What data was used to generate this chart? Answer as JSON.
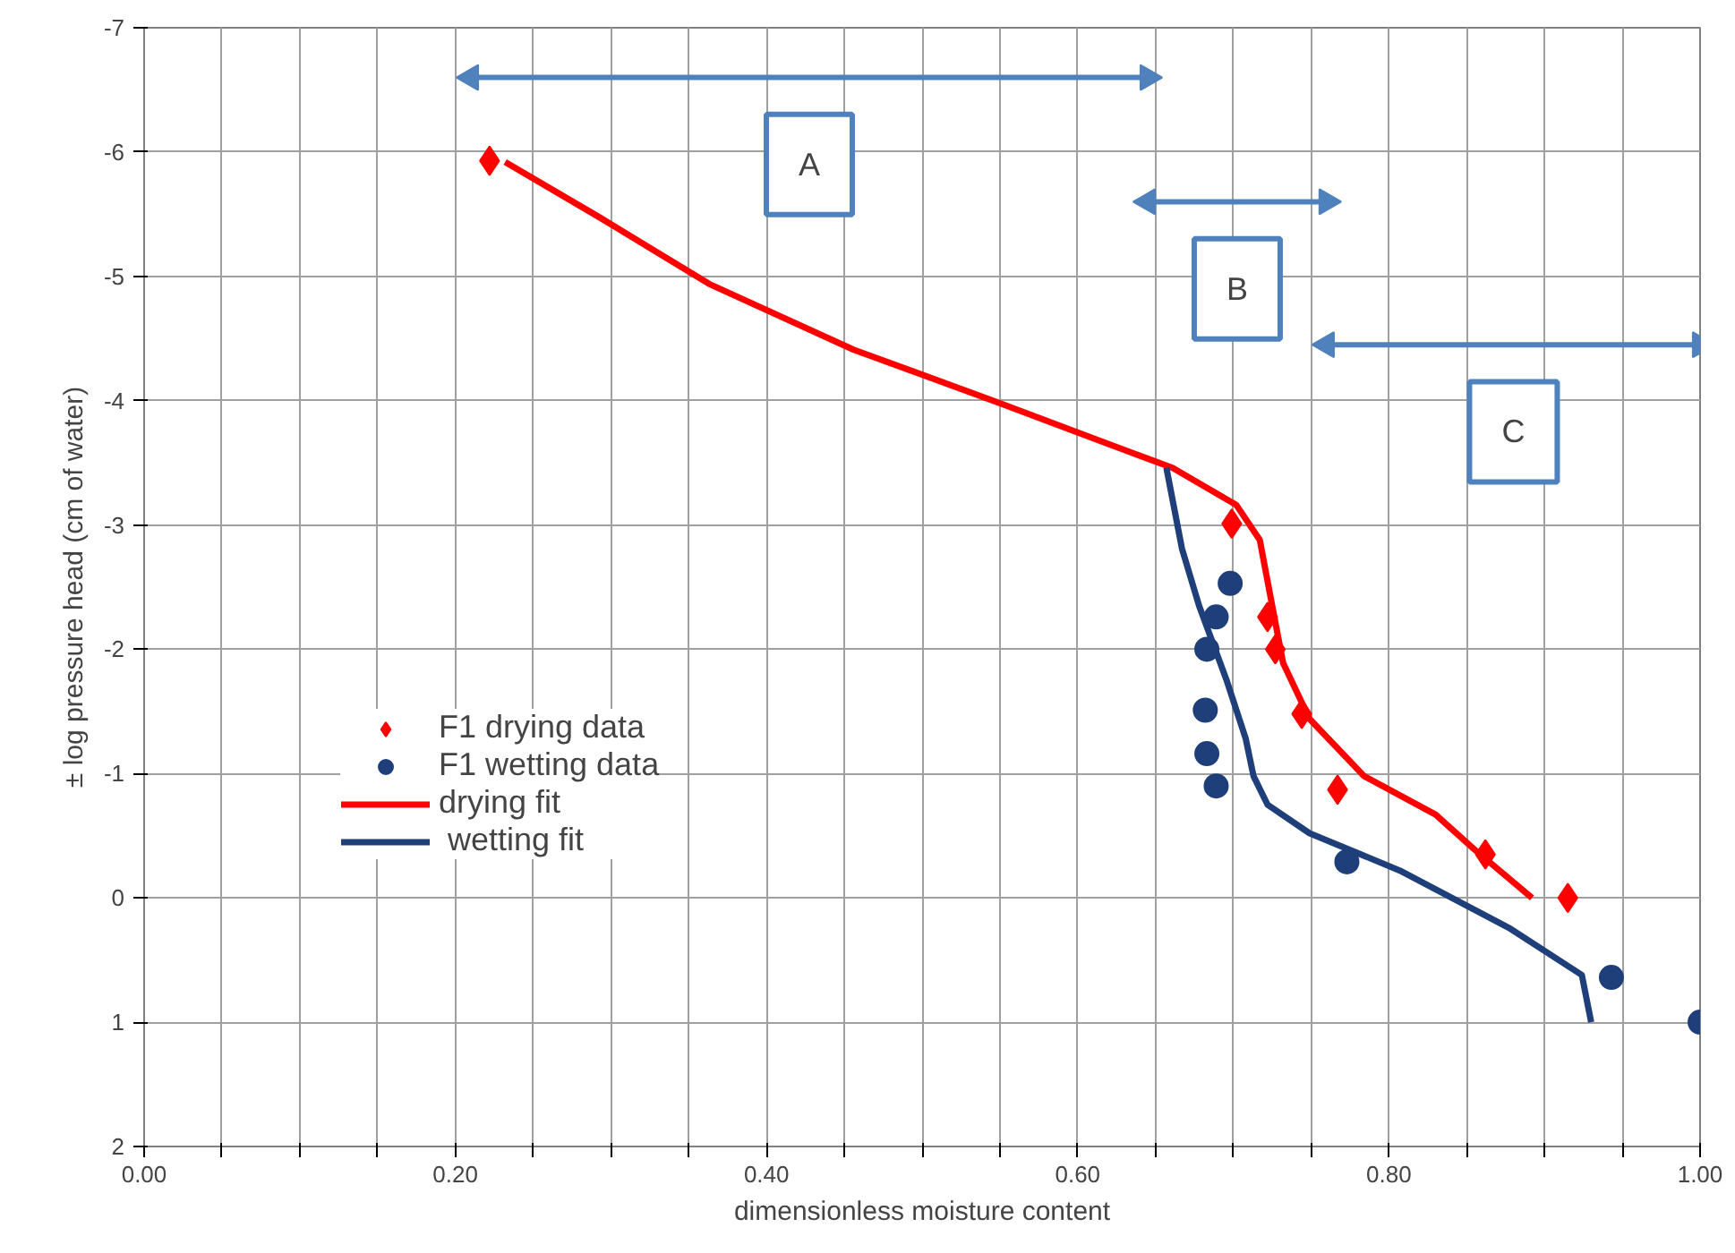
{
  "chart_data": {
    "type": "scatter",
    "xlabel": "dimensionless moisture content",
    "ylabel": "± log pressure head (cm of water)",
    "xlim": [
      0,
      1
    ],
    "ylim": [
      2,
      -7
    ],
    "xticks": [
      {
        "value": 0,
        "label": "0.00"
      },
      {
        "value": 0.05,
        "label": null
      },
      {
        "value": 0.1,
        "label": null
      },
      {
        "value": 0.15,
        "label": null
      },
      {
        "value": 0.2,
        "label": "0.20"
      },
      {
        "value": 0.25,
        "label": null
      },
      {
        "value": 0.3,
        "label": null
      },
      {
        "value": 0.35,
        "label": null
      },
      {
        "value": 0.4,
        "label": "0.40"
      },
      {
        "value": 0.45,
        "label": null
      },
      {
        "value": 0.5,
        "label": null
      },
      {
        "value": 0.55,
        "label": null
      },
      {
        "value": 0.6,
        "label": "0.60"
      },
      {
        "value": 0.65,
        "label": null
      },
      {
        "value": 0.7,
        "label": null
      },
      {
        "value": 0.75,
        "label": null
      },
      {
        "value": 0.8,
        "label": "0.80"
      },
      {
        "value": 0.85,
        "label": null
      },
      {
        "value": 0.9,
        "label": null
      },
      {
        "value": 0.95,
        "label": null
      },
      {
        "value": 1,
        "label": "1.00"
      }
    ],
    "yticks": [
      -7,
      -6,
      -5,
      -4,
      -3,
      -2,
      -1,
      0,
      1,
      2
    ],
    "grid": true,
    "legend": "left",
    "series": [
      {
        "name": "F1 drying data",
        "type": "scatter",
        "marker": "diamond",
        "color": "#ff0000",
        "x": [
          0.222,
          0.699,
          0.722,
          0.727,
          0.744,
          0.767,
          0.862,
          0.915
        ],
        "values": [
          -5.93,
          -3.01,
          -2.26,
          -2.0,
          -1.48,
          -0.87,
          -0.35,
          0.0
        ]
      },
      {
        "name": "F1 wetting data",
        "type": "scatter",
        "marker": "circle",
        "color": "#1f3f7a",
        "x": [
          0.698,
          0.689,
          0.683,
          0.682,
          0.683,
          0.689,
          0.773,
          0.943,
          1.0
        ],
        "values": [
          -2.53,
          -2.26,
          -2.0,
          -1.51,
          -1.16,
          -0.9,
          -0.29,
          0.64,
          1.0
        ]
      },
      {
        "name": "drying fit",
        "type": "line",
        "line_style": "solid",
        "color": "#ff0000",
        "x": [
          0.232,
          0.292,
          0.363,
          0.456,
          0.55,
          0.62,
          0.661,
          0.702,
          0.717,
          0.725,
          0.732,
          0.749,
          0.784,
          0.83,
          0.854,
          0.892
        ],
        "values": [
          -5.92,
          -5.48,
          -4.94,
          -4.41,
          -3.98,
          -3.65,
          -3.46,
          -3.16,
          -2.88,
          -2.35,
          -1.89,
          -1.44,
          -0.98,
          -0.67,
          -0.4,
          0.0
        ]
      },
      {
        "name": " wetting fit",
        "type": "line",
        "line_style": "solid",
        "color": "#1f3f7a",
        "x": [
          0.657,
          0.667,
          0.678,
          0.696,
          0.708,
          0.713,
          0.722,
          0.749,
          0.807,
          0.877,
          0.924,
          0.93
        ],
        "values": [
          -3.46,
          -2.81,
          -2.35,
          -1.74,
          -1.28,
          -0.98,
          -0.75,
          -0.52,
          -0.22,
          0.24,
          0.62,
          1.0
        ]
      },
      {
        "type": "line",
        "marker": "triangle",
        "color": "#4f81bd",
        "x": [
          0.21,
          0.645
        ],
        "values": [
          -6.6,
          -6.6
        ]
      },
      {
        "type": "line",
        "marker": "triangle",
        "color": "#4f81bd",
        "x": [
          0.645,
          0.76
        ],
        "values": [
          -5.6,
          -5.6
        ]
      },
      {
        "type": "line",
        "marker": "triangle",
        "color": "#4f81bd",
        "x": [
          0.76,
          1.0
        ],
        "values": [
          -4.45,
          -4.45
        ]
      }
    ],
    "annotations": [
      "A",
      "B",
      "C"
    ]
  }
}
